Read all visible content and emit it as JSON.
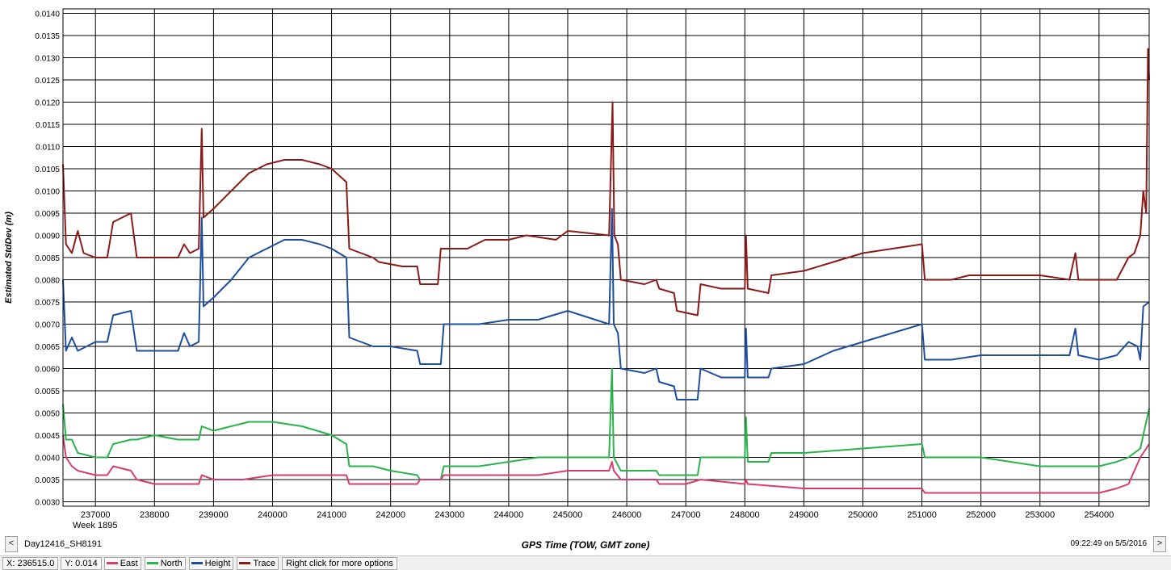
{
  "chart_data": {
    "type": "line",
    "title": "",
    "xlabel": "GPS Time (TOW, GMT zone)",
    "ylabel": "Estimated StdDev (m)",
    "xlim": [
      236450,
      254850
    ],
    "ylim": [
      0.0029,
      0.0141
    ],
    "x_ticks": [
      237000,
      238000,
      239000,
      240000,
      241000,
      242000,
      243000,
      244000,
      245000,
      246000,
      247000,
      248000,
      249000,
      250000,
      251000,
      252000,
      253000,
      254000
    ],
    "y_ticks": [
      "0.0030",
      "0.0035",
      "0.0040",
      "0.0045",
      "0.0050",
      "0.0055",
      "0.0060",
      "0.0065",
      "0.0070",
      "0.0075",
      "0.0080",
      "0.0085",
      "0.0090",
      "0.0095",
      "0.0100",
      "0.0105",
      "0.0110",
      "0.0115",
      "0.0120",
      "0.0125",
      "0.0130",
      "0.0135",
      "0.0140"
    ],
    "grid": true,
    "series": [
      {
        "name": "Trace",
        "color": "#8b1a1a",
        "points": [
          [
            236450,
            0.0106
          ],
          [
            236500,
            0.0088
          ],
          [
            236600,
            0.0086
          ],
          [
            236700,
            0.0091
          ],
          [
            236800,
            0.0086
          ],
          [
            237000,
            0.0085
          ],
          [
            237200,
            0.0085
          ],
          [
            237300,
            0.0093
          ],
          [
            237600,
            0.0095
          ],
          [
            237700,
            0.0085
          ],
          [
            238000,
            0.0085
          ],
          [
            238400,
            0.0085
          ],
          [
            238500,
            0.0088
          ],
          [
            238600,
            0.0086
          ],
          [
            238750,
            0.0087
          ],
          [
            238800,
            0.0114
          ],
          [
            238830,
            0.0094
          ],
          [
            239000,
            0.0096
          ],
          [
            239300,
            0.01
          ],
          [
            239600,
            0.0104
          ],
          [
            239900,
            0.0106
          ],
          [
            240200,
            0.0107
          ],
          [
            240500,
            0.0107
          ],
          [
            240800,
            0.0106
          ],
          [
            241000,
            0.0105
          ],
          [
            241250,
            0.0102
          ],
          [
            241300,
            0.0087
          ],
          [
            241500,
            0.0086
          ],
          [
            241700,
            0.0085
          ],
          [
            241800,
            0.0084
          ],
          [
            242200,
            0.0083
          ],
          [
            242450,
            0.0083
          ],
          [
            242500,
            0.0079
          ],
          [
            242800,
            0.0079
          ],
          [
            242850,
            0.0087
          ],
          [
            243300,
            0.0087
          ],
          [
            243600,
            0.0089
          ],
          [
            244000,
            0.0089
          ],
          [
            244300,
            0.009
          ],
          [
            244800,
            0.0089
          ],
          [
            245000,
            0.0091
          ],
          [
            245700,
            0.009
          ],
          [
            245760,
            0.012
          ],
          [
            245790,
            0.009
          ],
          [
            245850,
            0.0088
          ],
          [
            245900,
            0.008
          ],
          [
            246300,
            0.0079
          ],
          [
            246500,
            0.008
          ],
          [
            246550,
            0.0078
          ],
          [
            246800,
            0.0077
          ],
          [
            246850,
            0.0073
          ],
          [
            247200,
            0.0072
          ],
          [
            247250,
            0.0079
          ],
          [
            247600,
            0.0078
          ],
          [
            248000,
            0.0078
          ],
          [
            248020,
            0.009
          ],
          [
            248050,
            0.0078
          ],
          [
            248400,
            0.0077
          ],
          [
            248450,
            0.0081
          ],
          [
            249000,
            0.0082
          ],
          [
            249500,
            0.0084
          ],
          [
            250000,
            0.0086
          ],
          [
            250500,
            0.0087
          ],
          [
            251000,
            0.0088
          ],
          [
            251050,
            0.008
          ],
          [
            251500,
            0.008
          ],
          [
            251800,
            0.0081
          ],
          [
            252000,
            0.0081
          ],
          [
            252500,
            0.0081
          ],
          [
            253000,
            0.0081
          ],
          [
            253500,
            0.008
          ],
          [
            253600,
            0.0086
          ],
          [
            253650,
            0.008
          ],
          [
            254000,
            0.008
          ],
          [
            254300,
            0.008
          ],
          [
            254500,
            0.0085
          ],
          [
            254600,
            0.0086
          ],
          [
            254700,
            0.009
          ],
          [
            254750,
            0.01
          ],
          [
            254800,
            0.0095
          ],
          [
            254830,
            0.0132
          ],
          [
            254850,
            0.0125
          ]
        ]
      },
      {
        "name": "Height",
        "color": "#1f4e9c",
        "points": [
          [
            236450,
            0.008
          ],
          [
            236500,
            0.0064
          ],
          [
            236600,
            0.0067
          ],
          [
            236700,
            0.0064
          ],
          [
            237000,
            0.0066
          ],
          [
            237200,
            0.0066
          ],
          [
            237300,
            0.0072
          ],
          [
            237600,
            0.0073
          ],
          [
            237700,
            0.0064
          ],
          [
            238000,
            0.0064
          ],
          [
            238400,
            0.0064
          ],
          [
            238500,
            0.0068
          ],
          [
            238600,
            0.0065
          ],
          [
            238750,
            0.0066
          ],
          [
            238800,
            0.0094
          ],
          [
            238830,
            0.0074
          ],
          [
            239000,
            0.0076
          ],
          [
            239300,
            0.008
          ],
          [
            239600,
            0.0085
          ],
          [
            239900,
            0.0087
          ],
          [
            240200,
            0.0089
          ],
          [
            240500,
            0.0089
          ],
          [
            240800,
            0.0088
          ],
          [
            241000,
            0.0087
          ],
          [
            241250,
            0.0085
          ],
          [
            241300,
            0.0067
          ],
          [
            241500,
            0.0066
          ],
          [
            241700,
            0.0065
          ],
          [
            242000,
            0.0065
          ],
          [
            242450,
            0.0064
          ],
          [
            242500,
            0.0061
          ],
          [
            242850,
            0.0061
          ],
          [
            242900,
            0.007
          ],
          [
            243500,
            0.007
          ],
          [
            244000,
            0.0071
          ],
          [
            244500,
            0.0071
          ],
          [
            245000,
            0.0073
          ],
          [
            245700,
            0.007
          ],
          [
            245750,
            0.0096
          ],
          [
            245780,
            0.007
          ],
          [
            245850,
            0.0068
          ],
          [
            245900,
            0.006
          ],
          [
            246300,
            0.0059
          ],
          [
            246500,
            0.006
          ],
          [
            246550,
            0.0057
          ],
          [
            246800,
            0.0056
          ],
          [
            246850,
            0.0053
          ],
          [
            247200,
            0.0053
          ],
          [
            247250,
            0.006
          ],
          [
            247600,
            0.0058
          ],
          [
            248000,
            0.0058
          ],
          [
            248020,
            0.0069
          ],
          [
            248050,
            0.0058
          ],
          [
            248400,
            0.0058
          ],
          [
            248450,
            0.006
          ],
          [
            249000,
            0.0061
          ],
          [
            249500,
            0.0064
          ],
          [
            250000,
            0.0066
          ],
          [
            250500,
            0.0068
          ],
          [
            251000,
            0.007
          ],
          [
            251050,
            0.0062
          ],
          [
            251500,
            0.0062
          ],
          [
            252000,
            0.0063
          ],
          [
            252500,
            0.0063
          ],
          [
            253000,
            0.0063
          ],
          [
            253500,
            0.0063
          ],
          [
            253600,
            0.0069
          ],
          [
            253650,
            0.0063
          ],
          [
            254000,
            0.0062
          ],
          [
            254300,
            0.0063
          ],
          [
            254500,
            0.0066
          ],
          [
            254650,
            0.0065
          ],
          [
            254700,
            0.0062
          ],
          [
            254750,
            0.0074
          ],
          [
            254850,
            0.0075
          ]
        ]
      },
      {
        "name": "North",
        "color": "#2ab34a",
        "points": [
          [
            236450,
            0.0052
          ],
          [
            236500,
            0.0044
          ],
          [
            236600,
            0.0044
          ],
          [
            236700,
            0.0041
          ],
          [
            237000,
            0.004
          ],
          [
            237200,
            0.004
          ],
          [
            237300,
            0.0043
          ],
          [
            237600,
            0.0044
          ],
          [
            237700,
            0.0044
          ],
          [
            238000,
            0.0045
          ],
          [
            238400,
            0.0044
          ],
          [
            238750,
            0.0044
          ],
          [
            238800,
            0.0047
          ],
          [
            239000,
            0.0046
          ],
          [
            239300,
            0.0047
          ],
          [
            239600,
            0.0048
          ],
          [
            240000,
            0.0048
          ],
          [
            240500,
            0.0047
          ],
          [
            241000,
            0.0045
          ],
          [
            241250,
            0.0043
          ],
          [
            241300,
            0.0038
          ],
          [
            241700,
            0.0038
          ],
          [
            242000,
            0.0037
          ],
          [
            242450,
            0.0036
          ],
          [
            242500,
            0.0035
          ],
          [
            242850,
            0.0035
          ],
          [
            242900,
            0.0038
          ],
          [
            243500,
            0.0038
          ],
          [
            244000,
            0.0039
          ],
          [
            244500,
            0.004
          ],
          [
            245000,
            0.004
          ],
          [
            245700,
            0.004
          ],
          [
            245750,
            0.006
          ],
          [
            245780,
            0.004
          ],
          [
            245900,
            0.0037
          ],
          [
            246500,
            0.0037
          ],
          [
            246550,
            0.0036
          ],
          [
            246800,
            0.0036
          ],
          [
            246850,
            0.0036
          ],
          [
            247200,
            0.0036
          ],
          [
            247250,
            0.004
          ],
          [
            248000,
            0.004
          ],
          [
            248020,
            0.0049
          ],
          [
            248050,
            0.0039
          ],
          [
            248400,
            0.0039
          ],
          [
            248450,
            0.0041
          ],
          [
            249000,
            0.0041
          ],
          [
            250000,
            0.0042
          ],
          [
            251000,
            0.0043
          ],
          [
            251050,
            0.004
          ],
          [
            252000,
            0.004
          ],
          [
            252500,
            0.0039
          ],
          [
            253000,
            0.0038
          ],
          [
            253500,
            0.0038
          ],
          [
            254000,
            0.0038
          ],
          [
            254300,
            0.0039
          ],
          [
            254500,
            0.004
          ],
          [
            254700,
            0.0042
          ],
          [
            254850,
            0.0051
          ]
        ]
      },
      {
        "name": "East",
        "color": "#d63c6e",
        "points": [
          [
            236450,
            0.0045
          ],
          [
            236500,
            0.004
          ],
          [
            236600,
            0.0038
          ],
          [
            236700,
            0.0037
          ],
          [
            237000,
            0.0036
          ],
          [
            237200,
            0.0036
          ],
          [
            237300,
            0.0038
          ],
          [
            237600,
            0.0037
          ],
          [
            237700,
            0.0035
          ],
          [
            238000,
            0.0034
          ],
          [
            238750,
            0.0034
          ],
          [
            238800,
            0.0036
          ],
          [
            239000,
            0.0035
          ],
          [
            239500,
            0.0035
          ],
          [
            240000,
            0.0036
          ],
          [
            240500,
            0.0036
          ],
          [
            241000,
            0.0036
          ],
          [
            241250,
            0.0036
          ],
          [
            241300,
            0.0034
          ],
          [
            241700,
            0.0034
          ],
          [
            242000,
            0.0034
          ],
          [
            242450,
            0.0034
          ],
          [
            242500,
            0.0035
          ],
          [
            242850,
            0.0035
          ],
          [
            242900,
            0.0036
          ],
          [
            243500,
            0.0036
          ],
          [
            244000,
            0.0036
          ],
          [
            244500,
            0.0036
          ],
          [
            245000,
            0.0037
          ],
          [
            245700,
            0.0037
          ],
          [
            245750,
            0.0039
          ],
          [
            245780,
            0.0037
          ],
          [
            245900,
            0.0035
          ],
          [
            246500,
            0.0035
          ],
          [
            246550,
            0.0034
          ],
          [
            247000,
            0.0034
          ],
          [
            247250,
            0.0035
          ],
          [
            248000,
            0.0034
          ],
          [
            248020,
            0.0035
          ],
          [
            248050,
            0.0034
          ],
          [
            249000,
            0.0033
          ],
          [
            250000,
            0.0033
          ],
          [
            251000,
            0.0033
          ],
          [
            251050,
            0.0032
          ],
          [
            252000,
            0.0032
          ],
          [
            253000,
            0.0032
          ],
          [
            253500,
            0.0032
          ],
          [
            254000,
            0.0032
          ],
          [
            254300,
            0.0033
          ],
          [
            254500,
            0.0034
          ],
          [
            254700,
            0.004
          ],
          [
            254850,
            0.0043
          ]
        ]
      }
    ]
  },
  "nav": {
    "prev": "<",
    "next": ">"
  },
  "dataset_label": "Day12416_SH8191",
  "week_label": "Week 1895",
  "timestamp": "09:22:49 on 5/5/2016",
  "status": {
    "x_readout": "X: 236515.0",
    "y_readout": "Y: 0.014",
    "legend": [
      {
        "name": "East",
        "color": "#d63c6e"
      },
      {
        "name": "North",
        "color": "#2ab34a"
      },
      {
        "name": "Height",
        "color": "#1f4e9c"
      },
      {
        "name": "Trace",
        "color": "#8b1a1a"
      }
    ],
    "hint": "Right click for more options"
  }
}
